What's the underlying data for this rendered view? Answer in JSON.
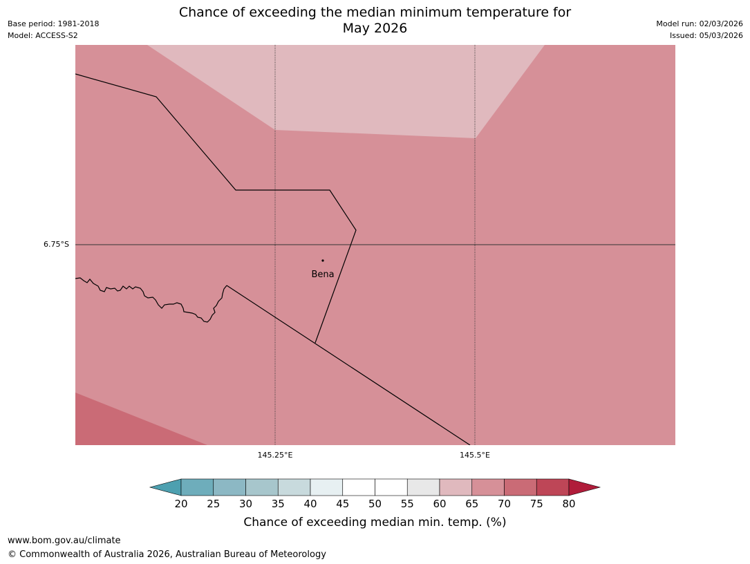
{
  "header": {
    "title_line1": "Chance of exceeding the median minimum temperature for",
    "title_line2": "May 2026",
    "base_period": "Base period: 1981-2018",
    "model": "Model: ACCESS-S2",
    "model_run": "Model run: 02/03/2026",
    "issued": "Issued: 05/03/2026"
  },
  "map": {
    "lat_label": "6.75°S",
    "lon_labels": [
      "145.25°E",
      "145.5°E"
    ],
    "place": "Bena",
    "colors": {
      "band_60_65": "#e0b9be",
      "band_65_70": "#d69098",
      "band_70_75": "#ca6b76",
      "grid": "#333333",
      "border": "#000000"
    }
  },
  "colorbar": {
    "labels": [
      "20",
      "25",
      "30",
      "35",
      "40",
      "45",
      "50",
      "55",
      "60",
      "65",
      "70",
      "75",
      "80"
    ],
    "colors": [
      "#4da0b0",
      "#6eadbb",
      "#8cb8c4",
      "#a7c6cc",
      "#c8dadd",
      "#e7f0f2",
      "#ffffff",
      "#ffffff",
      "#e8e8e8",
      "#e0b9be",
      "#d69098",
      "#ca6b76",
      "#be4657",
      "#b01c3a"
    ],
    "title": "Chance of exceeding median min. temp. (%)"
  },
  "footer": {
    "url": "www.bom.gov.au/climate",
    "copyright": "© Commonwealth of Australia 2026, Australian Bureau of Meteorology"
  }
}
